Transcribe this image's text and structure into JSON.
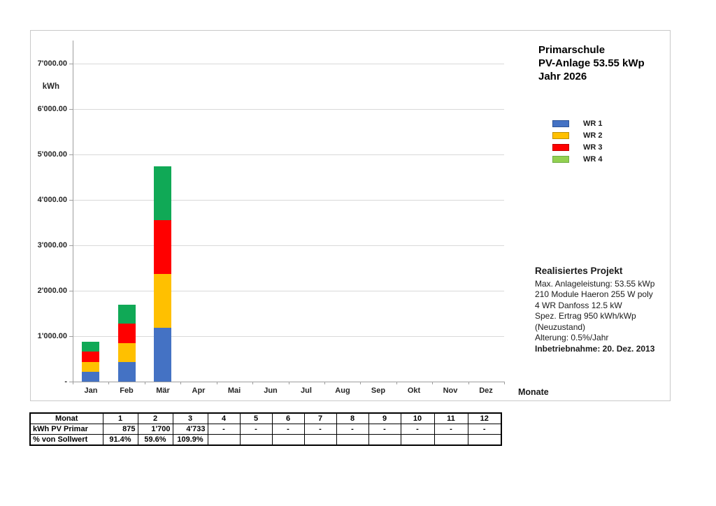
{
  "chart_data": {
    "type": "bar",
    "stacked": true,
    "title_lines": [
      "Primarschule",
      "PV-Anlage 53.55 kWp",
      "Jahr 2026"
    ],
    "y_axis_title": "kWh",
    "x_axis_title": "Monate",
    "ylim": [
      0,
      7500
    ],
    "y_tick_interval": 1000,
    "y_tick_labels": [
      "-",
      "1'000.00",
      "2'000.00",
      "3'000.00",
      "4'000.00",
      "5'000.00",
      "6'000.00",
      "7'000.00"
    ],
    "grid": "horizontal",
    "legend_position": "right",
    "categories": [
      "Jan",
      "Feb",
      "Mär",
      "Apr",
      "Mai",
      "Jun",
      "Jul",
      "Aug",
      "Sep",
      "Okt",
      "Nov",
      "Dez"
    ],
    "series": [
      {
        "name": "WR 1",
        "color": "#4472C4",
        "border_color": "#2F5597",
        "legend_color": "#4472C4",
        "values": [
          218.75,
          425,
          1183.25,
          0,
          0,
          0,
          0,
          0,
          0,
          0,
          0,
          0
        ]
      },
      {
        "name": "WR 2",
        "color": "#FFC000",
        "border_color": "#BF9000",
        "legend_color": "#FFC000",
        "values": [
          218.75,
          425,
          1183.25,
          0,
          0,
          0,
          0,
          0,
          0,
          0,
          0,
          0
        ]
      },
      {
        "name": "WR 3",
        "color": "#FF0000",
        "border_color": "#C00000",
        "legend_color": "#FF0000",
        "values": [
          218.75,
          425,
          1183.25,
          0,
          0,
          0,
          0,
          0,
          0,
          0,
          0,
          0
        ]
      },
      {
        "name": "WR 4",
        "color": "#10A956",
        "border_color": "#70AD47",
        "legend_color": "#92D050",
        "values": [
          218.75,
          425,
          1183.25,
          0,
          0,
          0,
          0,
          0,
          0,
          0,
          0,
          0
        ]
      }
    ],
    "monthly_totals_kwh": [
      875,
      1700,
      4733,
      null,
      null,
      null,
      null,
      null,
      null,
      null,
      null,
      null
    ]
  },
  "project_info": {
    "heading": "Realisiertes Projekt",
    "lines": [
      "Max. Anlageleistung: 53.55 kWp",
      "210 Module Haeron 255 W poly",
      "4 WR Danfoss 12.5 kW",
      "Spez. Ertrag 950 kWh/kWp",
      "(Neuzustand)",
      "Alterung: 0.5%/Jahr"
    ],
    "bold_line": "Inbetriebnahme: 20. Dez. 2013"
  },
  "table": {
    "header": [
      "Monat",
      "1",
      "2",
      "3",
      "4",
      "5",
      "6",
      "7",
      "8",
      "9",
      "10",
      "11",
      "12"
    ],
    "rows": [
      {
        "label": "kWh PV Primar",
        "align": "right",
        "values": [
          "875",
          "1'700",
          "4'733",
          "-",
          "-",
          "-",
          "-",
          "-",
          "-",
          "-",
          "-",
          "-"
        ]
      },
      {
        "label": "% von Sollwert",
        "align": "center",
        "values": [
          "91.4%",
          "59.6%",
          "109.9%",
          "",
          "",
          "",
          "",
          "",
          "",
          "",
          "",
          ""
        ]
      }
    ]
  }
}
